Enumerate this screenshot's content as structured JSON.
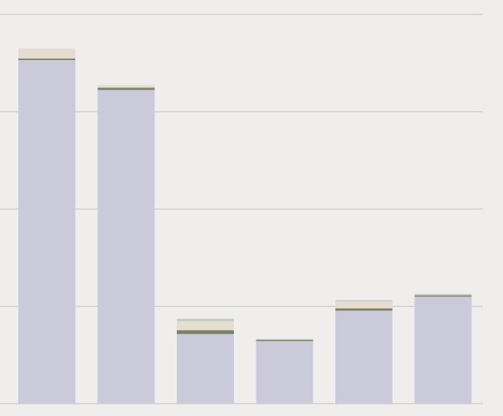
{
  "chart_data": {
    "type": "bar",
    "stacked": true,
    "title": "",
    "xlabel": "",
    "ylabel": "",
    "grid": true,
    "ylim": [
      0,
      100
    ],
    "gridlines": [
      0,
      25,
      50,
      75,
      100
    ],
    "categories": [
      "",
      "",
      "",
      "",
      "",
      ""
    ],
    "series": [
      {
        "color": "#cbcadb",
        "values": [
          88.2,
          80.5,
          17.8,
          16.0,
          23.8,
          27.4
        ]
      },
      {
        "color": "#7a8462",
        "values": [
          0.4,
          0.6,
          1.0,
          0.3,
          0.6,
          0.3
        ]
      },
      {
        "color": "#e4ddd0",
        "values": [
          2.6,
          0.7,
          2.3,
          0.0,
          1.8,
          0.0
        ]
      },
      {
        "color": "#c2cdc0",
        "values": [
          0.0,
          0.0,
          0.6,
          0.2,
          0.3,
          0.4
        ]
      }
    ]
  }
}
